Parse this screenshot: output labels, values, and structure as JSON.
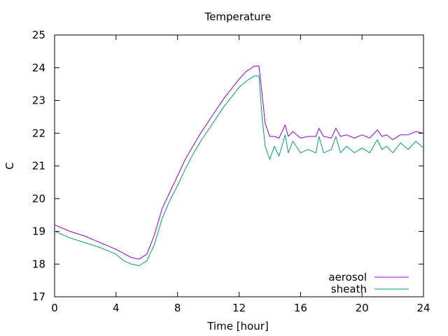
{
  "chart_data": {
    "type": "line",
    "title": "Temperature",
    "xlabel": "Time [hour]",
    "ylabel": "C",
    "xlim": [
      0,
      24
    ],
    "ylim": [
      17,
      25
    ],
    "xticks": [
      0,
      4,
      8,
      12,
      16,
      20,
      24
    ],
    "yticks": [
      17,
      18,
      19,
      20,
      21,
      22,
      23,
      24,
      25
    ],
    "grid": false,
    "legend_position": "bottom-right",
    "series": [
      {
        "name": "aerosol",
        "color": "#9400d3",
        "x": [
          0,
          1,
          2,
          3,
          4,
          5,
          5.5,
          6,
          6.5,
          7,
          7.5,
          8,
          8.5,
          9,
          9.5,
          10,
          10.5,
          11,
          11.5,
          12,
          12.5,
          13,
          13.3,
          13.5,
          13.7,
          14,
          14.3,
          14.6,
          15,
          15.2,
          15.5,
          16,
          16.5,
          17,
          17.2,
          17.5,
          18,
          18.3,
          18.6,
          19,
          19.5,
          20,
          20.5,
          21,
          21.3,
          21.6,
          22,
          22.5,
          23,
          23.5,
          24
        ],
        "values": [
          19.2,
          19.0,
          18.85,
          18.65,
          18.45,
          18.2,
          18.15,
          18.3,
          18.9,
          19.7,
          20.2,
          20.7,
          21.2,
          21.6,
          22.0,
          22.35,
          22.7,
          23.05,
          23.35,
          23.65,
          23.9,
          24.05,
          24.05,
          23.2,
          22.3,
          21.9,
          21.9,
          21.85,
          22.25,
          21.9,
          22.05,
          21.85,
          21.9,
          21.9,
          22.15,
          21.9,
          21.85,
          22.15,
          21.9,
          21.95,
          21.85,
          21.95,
          21.85,
          22.1,
          21.9,
          21.95,
          21.8,
          21.95,
          21.95,
          22.05,
          22.0
        ]
      },
      {
        "name": "sheath",
        "color": "#009e73",
        "x": [
          0,
          1,
          2,
          3,
          4,
          4.5,
          5,
          5.5,
          6,
          6.5,
          7,
          7.5,
          8,
          8.5,
          9,
          9.5,
          10,
          10.5,
          11,
          11.5,
          12,
          12.5,
          13,
          13.3,
          13.5,
          13.7,
          14,
          14.3,
          14.6,
          15,
          15.2,
          15.5,
          16,
          16.5,
          17,
          17.2,
          17.5,
          18,
          18.3,
          18.6,
          19,
          19.5,
          20,
          20.5,
          21,
          21.3,
          21.6,
          22,
          22.5,
          23,
          23.5,
          24
        ],
        "values": [
          19.0,
          18.8,
          18.65,
          18.5,
          18.3,
          18.1,
          18.0,
          17.95,
          18.1,
          18.6,
          19.4,
          19.95,
          20.4,
          20.9,
          21.35,
          21.75,
          22.1,
          22.45,
          22.8,
          23.1,
          23.4,
          23.6,
          23.75,
          23.75,
          22.5,
          21.6,
          21.2,
          21.6,
          21.3,
          21.95,
          21.4,
          21.75,
          21.4,
          21.5,
          21.4,
          21.9,
          21.4,
          21.5,
          21.9,
          21.4,
          21.6,
          21.4,
          21.55,
          21.4,
          21.8,
          21.5,
          21.6,
          21.4,
          21.7,
          21.5,
          21.75,
          21.55
        ]
      }
    ]
  }
}
